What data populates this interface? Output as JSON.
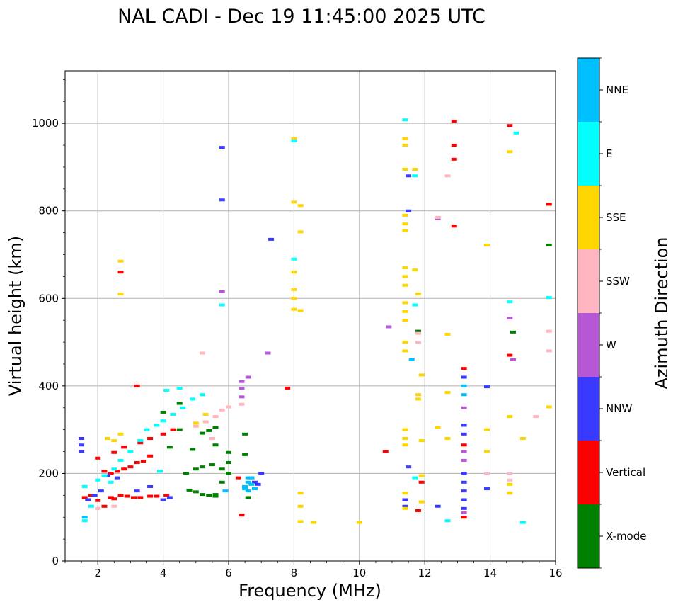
{
  "chart_data": {
    "type": "scatter",
    "title": "NAL CADI - Dec 19 11:45:00 2025 UTC",
    "xlabel": "Frequency (MHz)",
    "ylabel": "Virtual height (km)",
    "xlim": [
      1,
      16
    ],
    "ylim": [
      0,
      1120
    ],
    "xticks": [
      2,
      4,
      6,
      8,
      10,
      12,
      14,
      16
    ],
    "yticks": [
      0,
      200,
      400,
      600,
      800,
      1000
    ],
    "grid": true,
    "colorbar": {
      "label": "Azimuth Direction",
      "categories": [
        {
          "name": "X-mode",
          "color": "#008000"
        },
        {
          "name": "Vertical",
          "color": "#ff0000"
        },
        {
          "name": "NNW",
          "color": "#3a3aff"
        },
        {
          "name": "W",
          "color": "#b658d6"
        },
        {
          "name": "SSW",
          "color": "#ffb6c1"
        },
        {
          "name": "SSE",
          "color": "#ffd700"
        },
        {
          "name": "E",
          "color": "#00ffff"
        },
        {
          "name": "NNE",
          "color": "#00bfff"
        }
      ]
    },
    "series": [
      {
        "name": "X-mode",
        "points": [
          [
            4.8,
            162
          ],
          [
            5.0,
            158
          ],
          [
            5.2,
            152
          ],
          [
            5.4,
            150
          ],
          [
            5.6,
            152
          ],
          [
            5.6,
            148
          ],
          [
            5.8,
            180
          ],
          [
            6.0,
            200
          ],
          [
            6.5,
            243
          ],
          [
            6.5,
            290
          ],
          [
            6.6,
            145
          ],
          [
            4.0,
            340
          ],
          [
            4.5,
            360
          ],
          [
            5.2,
            292
          ],
          [
            5.4,
            298
          ],
          [
            5.6,
            305
          ],
          [
            4.7,
            200
          ],
          [
            5.0,
            210
          ],
          [
            5.2,
            215
          ],
          [
            5.5,
            220
          ],
          [
            5.8,
            210
          ],
          [
            6.0,
            225
          ],
          [
            4.9,
            255
          ],
          [
            5.6,
            265
          ],
          [
            6.0,
            248
          ],
          [
            15.8,
            722
          ],
          [
            11.8,
            525
          ],
          [
            14.7,
            523
          ],
          [
            4.2,
            260
          ],
          [
            4.5,
            300
          ]
        ]
      },
      {
        "name": "Vertical",
        "points": [
          [
            1.6,
            145
          ],
          [
            1.8,
            150
          ],
          [
            2.0,
            138
          ],
          [
            2.2,
            125
          ],
          [
            2.4,
            145
          ],
          [
            2.5,
            142
          ],
          [
            2.7,
            150
          ],
          [
            2.9,
            148
          ],
          [
            3.1,
            145
          ],
          [
            3.3,
            145
          ],
          [
            3.6,
            148
          ],
          [
            3.8,
            148
          ],
          [
            4.1,
            150
          ],
          [
            2.2,
            205
          ],
          [
            2.4,
            200
          ],
          [
            2.6,
            205
          ],
          [
            2.8,
            210
          ],
          [
            3.0,
            215
          ],
          [
            3.2,
            225
          ],
          [
            3.4,
            228
          ],
          [
            3.6,
            240
          ],
          [
            2.0,
            235
          ],
          [
            2.5,
            248
          ],
          [
            2.8,
            260
          ],
          [
            3.3,
            270
          ],
          [
            3.6,
            280
          ],
          [
            4.0,
            290
          ],
          [
            4.3,
            300
          ],
          [
            2.7,
            660
          ],
          [
            3.2,
            400
          ],
          [
            6.4,
            105
          ],
          [
            6.3,
            190
          ],
          [
            7.8,
            395
          ],
          [
            10.8,
            250
          ],
          [
            11.8,
            115
          ],
          [
            11.9,
            180
          ],
          [
            12.9,
            1005
          ],
          [
            12.9,
            918
          ],
          [
            12.9,
            765
          ],
          [
            12.9,
            950
          ],
          [
            13.2,
            440
          ],
          [
            13.2,
            265
          ],
          [
            13.2,
            100
          ],
          [
            14.6,
            995
          ],
          [
            14.6,
            470
          ],
          [
            15.8,
            815
          ]
        ]
      },
      {
        "name": "NNW",
        "points": [
          [
            1.5,
            280
          ],
          [
            1.5,
            265
          ],
          [
            1.5,
            250
          ],
          [
            1.7,
            140
          ],
          [
            1.9,
            150
          ],
          [
            2.1,
            160
          ],
          [
            2.3,
            195
          ],
          [
            2.6,
            190
          ],
          [
            3.2,
            160
          ],
          [
            3.6,
            170
          ],
          [
            4.0,
            140
          ],
          [
            4.2,
            145
          ],
          [
            6.8,
            180
          ],
          [
            6.7,
            190
          ],
          [
            6.9,
            175
          ],
          [
            7.0,
            200
          ],
          [
            11.4,
            140
          ],
          [
            11.4,
            125
          ],
          [
            11.5,
            215
          ],
          [
            11.5,
            880
          ],
          [
            11.5,
            800
          ],
          [
            12.4,
            125
          ],
          [
            13.2,
            420
          ],
          [
            13.2,
            310
          ],
          [
            13.2,
            290
          ],
          [
            13.2,
            200
          ],
          [
            13.2,
            180
          ],
          [
            13.2,
            160
          ],
          [
            13.2,
            140
          ],
          [
            13.2,
            120
          ],
          [
            13.9,
            165
          ],
          [
            13.9,
            398
          ],
          [
            5.8,
            945
          ],
          [
            5.8,
            825
          ],
          [
            7.3,
            735
          ]
        ]
      },
      {
        "name": "W",
        "points": [
          [
            6.4,
            410
          ],
          [
            6.4,
            395
          ],
          [
            6.4,
            375
          ],
          [
            6.6,
            420
          ],
          [
            7.2,
            475
          ],
          [
            10.9,
            535
          ],
          [
            13.2,
            350
          ],
          [
            13.2,
            250
          ],
          [
            13.2,
            230
          ],
          [
            13.2,
            110
          ],
          [
            14.6,
            555
          ],
          [
            14.7,
            460
          ],
          [
            5.8,
            615
          ],
          [
            12.4,
            782
          ]
        ]
      },
      {
        "name": "SSW",
        "points": [
          [
            2.0,
            120
          ],
          [
            2.5,
            125
          ],
          [
            5.0,
            308
          ],
          [
            5.3,
            318
          ],
          [
            5.6,
            330
          ],
          [
            5.8,
            345
          ],
          [
            6.0,
            352
          ],
          [
            6.4,
            358
          ],
          [
            5.5,
            280
          ],
          [
            5.2,
            475
          ],
          [
            12.7,
            880
          ],
          [
            12.4,
            785
          ],
          [
            14.6,
            200
          ],
          [
            14.6,
            185
          ],
          [
            15.4,
            330
          ],
          [
            15.8,
            525
          ],
          [
            15.8,
            480
          ],
          [
            11.8,
            520
          ],
          [
            11.8,
            500
          ],
          [
            13.9,
            200
          ]
        ]
      },
      {
        "name": "SSE",
        "points": [
          [
            2.3,
            280
          ],
          [
            2.5,
            275
          ],
          [
            2.7,
            290
          ],
          [
            5.0,
            315
          ],
          [
            5.3,
            335
          ],
          [
            2.7,
            685
          ],
          [
            2.7,
            610
          ],
          [
            8.0,
            965
          ],
          [
            8.0,
            820
          ],
          [
            8.0,
            660
          ],
          [
            8.0,
            620
          ],
          [
            8.0,
            600
          ],
          [
            8.0,
            575
          ],
          [
            8.2,
            812
          ],
          [
            8.2,
            752
          ],
          [
            8.2,
            572
          ],
          [
            8.2,
            155
          ],
          [
            8.2,
            125
          ],
          [
            8.2,
            90
          ],
          [
            8.6,
            88
          ],
          [
            10.0,
            88
          ],
          [
            11.4,
            965
          ],
          [
            11.4,
            950
          ],
          [
            11.4,
            895
          ],
          [
            11.4,
            790
          ],
          [
            11.4,
            770
          ],
          [
            11.4,
            755
          ],
          [
            11.4,
            670
          ],
          [
            11.4,
            650
          ],
          [
            11.4,
            630
          ],
          [
            11.4,
            590
          ],
          [
            11.4,
            570
          ],
          [
            11.4,
            550
          ],
          [
            11.4,
            500
          ],
          [
            11.4,
            480
          ],
          [
            11.4,
            300
          ],
          [
            11.4,
            280
          ],
          [
            11.4,
            265
          ],
          [
            11.4,
            155
          ],
          [
            11.4,
            120
          ],
          [
            11.7,
            895
          ],
          [
            11.7,
            665
          ],
          [
            11.8,
            610
          ],
          [
            11.8,
            380
          ],
          [
            11.8,
            370
          ],
          [
            11.9,
            425
          ],
          [
            11.9,
            275
          ],
          [
            11.9,
            195
          ],
          [
            11.9,
            135
          ],
          [
            12.4,
            305
          ],
          [
            12.7,
            385
          ],
          [
            12.7,
            518
          ],
          [
            12.7,
            280
          ],
          [
            13.9,
            722
          ],
          [
            13.9,
            300
          ],
          [
            13.9,
            250
          ],
          [
            14.6,
            935
          ],
          [
            14.6,
            330
          ],
          [
            14.6,
            175
          ],
          [
            14.6,
            155
          ],
          [
            15.0,
            280
          ],
          [
            15.8,
            352
          ]
        ]
      },
      {
        "name": "E",
        "points": [
          [
            1.6,
            170
          ],
          [
            1.8,
            125
          ],
          [
            2.0,
            185
          ],
          [
            2.2,
            195
          ],
          [
            2.5,
            210
          ],
          [
            2.7,
            230
          ],
          [
            3.0,
            250
          ],
          [
            3.3,
            275
          ],
          [
            3.5,
            300
          ],
          [
            3.8,
            310
          ],
          [
            4.0,
            320
          ],
          [
            4.3,
            335
          ],
          [
            4.6,
            350
          ],
          [
            4.9,
            370
          ],
          [
            5.2,
            380
          ],
          [
            4.1,
            390
          ],
          [
            4.5,
            395
          ],
          [
            2.4,
            180
          ],
          [
            3.9,
            205
          ],
          [
            8.0,
            960
          ],
          [
            8.0,
            690
          ],
          [
            11.4,
            1008
          ],
          [
            11.7,
            880
          ],
          [
            11.7,
            585
          ],
          [
            11.7,
            190
          ],
          [
            12.7,
            92
          ],
          [
            14.6,
            592
          ],
          [
            14.8,
            978
          ],
          [
            15.0,
            88
          ],
          [
            15.8,
            602
          ],
          [
            1.6,
            92
          ],
          [
            5.8,
            585
          ]
        ]
      },
      {
        "name": "NNE",
        "points": [
          [
            6.5,
            170
          ],
          [
            6.6,
            180
          ],
          [
            6.7,
            175
          ],
          [
            6.6,
            160
          ],
          [
            6.5,
            165
          ],
          [
            6.7,
            190
          ],
          [
            6.8,
            165
          ],
          [
            6.6,
            190
          ],
          [
            5.9,
            160
          ],
          [
            13.2,
            400
          ],
          [
            13.2,
            380
          ],
          [
            1.6,
            100
          ],
          [
            11.6,
            460
          ]
        ]
      }
    ]
  }
}
